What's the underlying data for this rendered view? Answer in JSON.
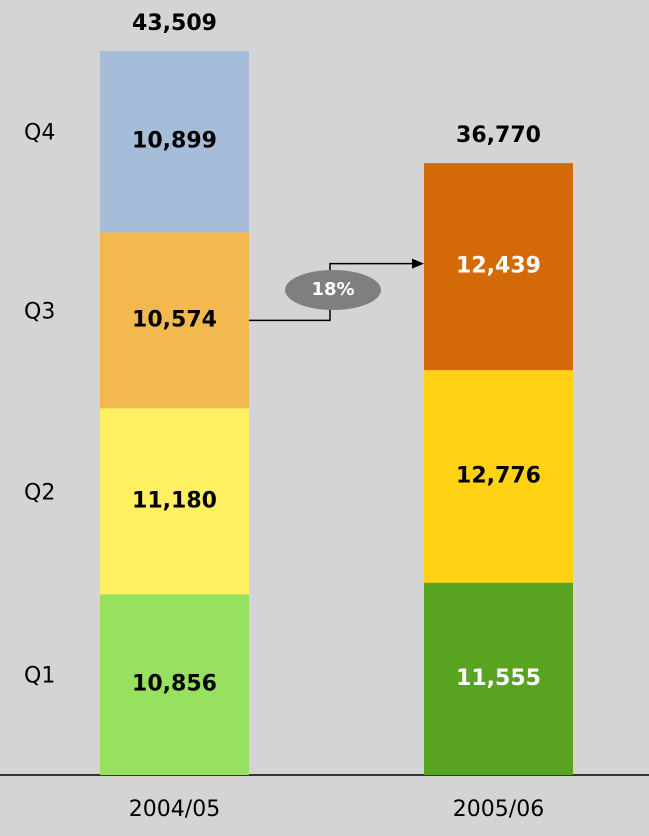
{
  "chart_data": {
    "type": "stacked-bar",
    "categories": [
      "2004/05",
      "2005/06"
    ],
    "series": [
      {
        "name": "Q1",
        "colors": [
          "#98e160",
          "#58a320"
        ],
        "label_colors": [
          "#000000",
          "#ffffff"
        ],
        "values": [
          10856,
          11555
        ],
        "value_labels": [
          "10,856",
          "11,555"
        ]
      },
      {
        "name": "Q2",
        "colors": [
          "#fff062",
          "#ffd214"
        ],
        "label_colors": [
          "#000000",
          "#000000"
        ],
        "values": [
          11180,
          12776
        ],
        "value_labels": [
          "11,180",
          "12,776"
        ]
      },
      {
        "name": "Q3",
        "colors": [
          "#f1b94f",
          "#d46a07"
        ],
        "label_colors": [
          "#000000",
          "#ffffff"
        ],
        "values": [
          10574,
          12439
        ],
        "value_labels": [
          "10,574",
          "12,439"
        ]
      },
      {
        "name": "Q4",
        "colors": [
          "#a5bdd9",
          null
        ],
        "label_colors": [
          "#000000",
          null
        ],
        "values": [
          10899,
          null
        ],
        "value_labels": [
          "10,899",
          null
        ]
      }
    ],
    "totals": [
      43509,
      36770
    ],
    "total_labels": [
      "43,509",
      "36,770"
    ],
    "annotation": "18%"
  }
}
